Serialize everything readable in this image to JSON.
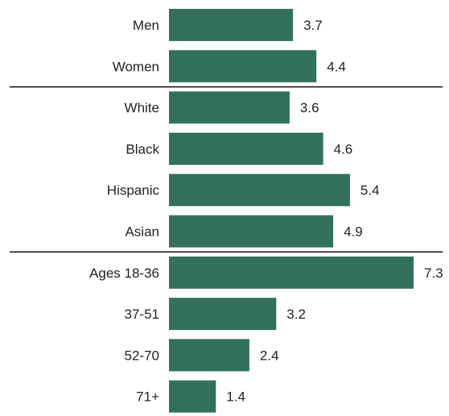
{
  "chart_data": {
    "type": "bar",
    "orientation": "horizontal",
    "categories": [
      "Men",
      "Women",
      "White",
      "Black",
      "Hispanic",
      "Asian",
      "Ages 18-36",
      "37-51",
      "52-70",
      "71+"
    ],
    "values": [
      3.7,
      4.4,
      3.6,
      4.6,
      5.4,
      4.9,
      7.3,
      3.2,
      2.4,
      1.4
    ],
    "value_labels": [
      "3.7",
      "4.4",
      "3.6",
      "4.6",
      "5.4",
      "4.9",
      "7.3",
      "3.2",
      "2.4",
      "1.4"
    ],
    "groups": [
      {
        "categories": [
          "Men",
          "Women"
        ]
      },
      {
        "categories": [
          "White",
          "Black",
          "Hispanic",
          "Asian"
        ]
      },
      {
        "categories": [
          "Ages 18-36",
          "37-51",
          "52-70",
          "71+"
        ]
      }
    ],
    "title": "",
    "xlabel": "",
    "ylabel": "",
    "xlim": [
      0,
      7.3
    ],
    "grid": false,
    "legend": "none",
    "bar_color": "#33705E",
    "divider_color": "#222222"
  }
}
